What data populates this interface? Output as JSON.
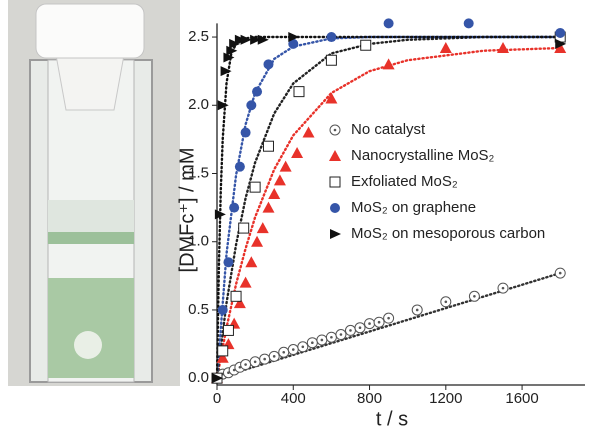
{
  "chart_data": {
    "type": "scatter",
    "ylabel": "[DMFc⁺] / mM",
    "xlabel": "t / s",
    "xlim": [
      0,
      1930
    ],
    "ylim": [
      -0.05,
      2.6
    ],
    "xticks": [
      0,
      400,
      800,
      1200,
      1600
    ],
    "yticks": [
      {
        "value": 0,
        "label": "0.0"
      },
      0.5,
      {
        "value": 1,
        "label": "1.0"
      },
      1.5,
      {
        "value": 2,
        "label": "2.0"
      },
      2.5
    ],
    "legend": "center",
    "series": [
      {
        "name": "No catalyst",
        "color": "#555555",
        "marker": "circle-dot",
        "x": [
          0,
          30,
          60,
          90,
          120,
          150,
          200,
          250,
          300,
          350,
          400,
          450,
          500,
          550,
          600,
          650,
          700,
          750,
          800,
          850,
          900,
          1050,
          1200,
          1350,
          1500,
          1800
        ],
        "values": [
          0,
          0.03,
          0.04,
          0.06,
          0.08,
          0.1,
          0.12,
          0.14,
          0.16,
          0.19,
          0.21,
          0.23,
          0.26,
          0.28,
          0.3,
          0.32,
          0.35,
          0.37,
          0.4,
          0.41,
          0.44,
          0.5,
          0.56,
          0.6,
          0.66,
          0.77
        ]
      },
      {
        "name": "Nanocrystalline MoS₂",
        "color": "#e8322a",
        "marker": "triangle-up",
        "x": [
          0,
          30,
          60,
          90,
          120,
          150,
          180,
          210,
          240,
          270,
          300,
          330,
          360,
          420,
          480,
          600,
          900,
          1200,
          1500,
          1800
        ],
        "values": [
          0,
          0.15,
          0.25,
          0.4,
          0.55,
          0.7,
          0.85,
          1.0,
          1.1,
          1.25,
          1.35,
          1.45,
          1.55,
          1.65,
          1.8,
          2.05,
          2.3,
          2.42,
          2.42,
          2.42
        ]
      },
      {
        "name": "Exfoliated MoS₂",
        "color": "#222222",
        "marker": "square-open",
        "x": [
          0,
          30,
          60,
          100,
          140,
          200,
          270,
          430,
          600,
          780,
          1800
        ],
        "values": [
          0,
          0.2,
          0.35,
          0.6,
          1.1,
          1.4,
          1.7,
          2.1,
          2.33,
          2.44,
          2.5
        ]
      },
      {
        "name": "MoS₂ on graphene",
        "color": "#3555a8",
        "marker": "circle",
        "x": [
          30,
          60,
          90,
          120,
          150,
          180,
          210,
          270,
          400,
          600,
          900,
          1320,
          1800
        ],
        "values": [
          0.5,
          0.85,
          1.25,
          1.55,
          1.8,
          2.0,
          2.1,
          2.3,
          2.45,
          2.5,
          2.6,
          2.6,
          2.53
        ]
      },
      {
        "name": "MoS₂ on mesoporous carbon",
        "color": "#111111",
        "marker": "triangle-right",
        "x": [
          0,
          15,
          30,
          45,
          60,
          75,
          90,
          120,
          150,
          200,
          240,
          400,
          1800
        ],
        "values": [
          0,
          1.2,
          2.0,
          2.25,
          2.35,
          2.4,
          2.45,
          2.48,
          2.48,
          2.48,
          2.48,
          2.5,
          2.45
        ]
      }
    ],
    "fits": [
      {
        "color": "#333333",
        "x": [
          0,
          1800
        ],
        "values": [
          0,
          0.77
        ]
      },
      {
        "color": "#e8322a",
        "x": [
          0,
          50,
          100,
          150,
          200,
          300,
          400,
          600,
          800,
          1000,
          1400,
          1800
        ],
        "values": [
          0,
          0.37,
          0.69,
          0.95,
          1.18,
          1.53,
          1.78,
          2.09,
          2.25,
          2.33,
          2.4,
          2.42
        ]
      },
      {
        "color": "#222222",
        "x": [
          0,
          50,
          100,
          150,
          200,
          300,
          400,
          600,
          800,
          1000,
          1400,
          1800
        ],
        "values": [
          0,
          0.55,
          0.98,
          1.32,
          1.58,
          1.94,
          2.16,
          2.38,
          2.45,
          2.48,
          2.5,
          2.5
        ]
      },
      {
        "color": "#3555a8",
        "x": [
          0,
          50,
          100,
          150,
          200,
          300,
          400,
          600,
          800,
          1800
        ],
        "values": [
          0,
          0.91,
          1.49,
          1.86,
          2.09,
          2.34,
          2.43,
          2.49,
          2.5,
          2.5
        ]
      },
      {
        "color": "#111111",
        "x": [
          0,
          10,
          20,
          30,
          50,
          75,
          100,
          150,
          200,
          1800
        ],
        "values": [
          0,
          0.82,
          1.38,
          1.75,
          2.16,
          2.38,
          2.45,
          2.49,
          2.5,
          2.5
        ]
      }
    ]
  }
}
